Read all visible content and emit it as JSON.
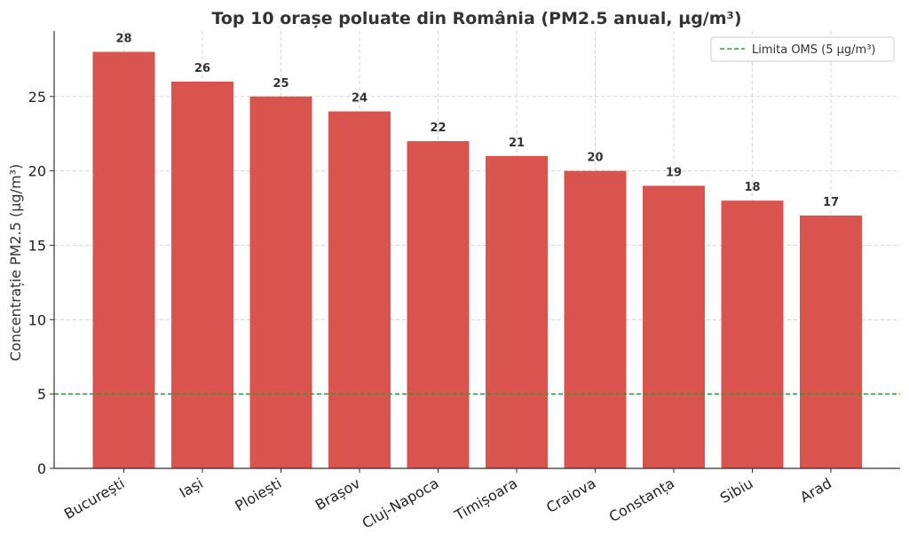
{
  "chart_data": {
    "type": "bar",
    "title": "Top 10 orașe poluate din România (PM2.5 anual, µg/m³)",
    "xlabel": "",
    "ylabel": "Concentrație PM2.5 (µg/m³)",
    "categories": [
      "București",
      "Iași",
      "Ploiești",
      "Brașov",
      "Cluj-Napoca",
      "Timișoara",
      "Craiova",
      "Constanța",
      "Sibiu",
      "Arad"
    ],
    "values": [
      28,
      26,
      25,
      24,
      22,
      21,
      20,
      19,
      18,
      17
    ],
    "data_labels": [
      "28",
      "26",
      "25",
      "24",
      "22",
      "21",
      "20",
      "19",
      "18",
      "17"
    ],
    "ylim": [
      0,
      29.4
    ],
    "yticks": [
      0,
      5,
      10,
      15,
      20,
      25
    ],
    "ytick_labels": [
      "0",
      "5",
      "10",
      "15",
      "20",
      "25"
    ],
    "bar_color": "#d9534f",
    "grid": true,
    "reference_line": {
      "value": 5,
      "label": "Limita OMS (5 µg/m³)",
      "color": "#2ca02c",
      "style": "dashed"
    },
    "legend_position": "top-right"
  }
}
